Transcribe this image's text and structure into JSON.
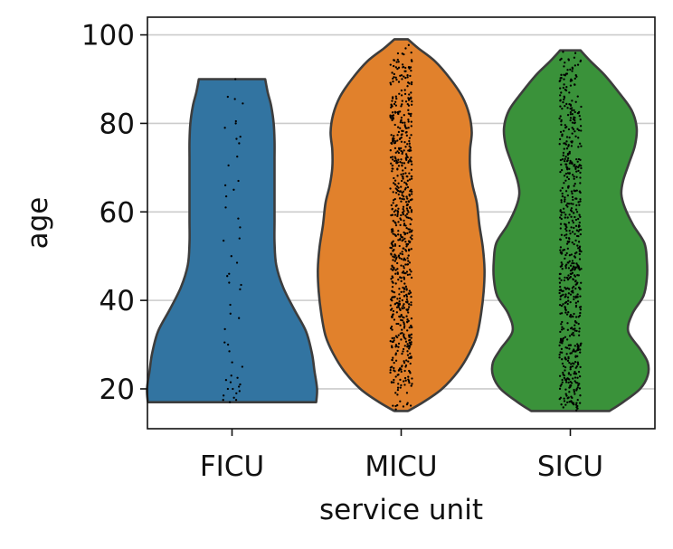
{
  "chart_data": {
    "type": "violin",
    "title": "",
    "xlabel": "service unit",
    "ylabel": "age",
    "ylim": [
      11,
      104
    ],
    "yticks": [
      20,
      40,
      60,
      80,
      100
    ],
    "grid": "y",
    "legend": "none",
    "categories": [
      "FICU",
      "MICU",
      "SICU"
    ],
    "colors": [
      "#3274a1",
      "#e1812c",
      "#3a923a"
    ],
    "series": [
      {
        "category": "FICU",
        "min": 17,
        "max": 90,
        "density_profile": [
          [
            17,
            0.99
          ],
          [
            20,
            1.0
          ],
          [
            24,
            0.97
          ],
          [
            28,
            0.94
          ],
          [
            33,
            0.87
          ],
          [
            38,
            0.73
          ],
          [
            43,
            0.6
          ],
          [
            48,
            0.52
          ],
          [
            53,
            0.5
          ],
          [
            58,
            0.5
          ],
          [
            63,
            0.5
          ],
          [
            68,
            0.5
          ],
          [
            72,
            0.5
          ],
          [
            76,
            0.5
          ],
          [
            80,
            0.49
          ],
          [
            84,
            0.46
          ],
          [
            87,
            0.42
          ],
          [
            90,
            0.39
          ]
        ],
        "points": [
          90,
          86,
          85.5,
          84.5,
          80.5,
          80,
          79,
          77,
          76.5,
          75.5,
          72.5,
          70.5,
          67,
          66,
          65,
          63.5,
          61,
          58.5,
          56.5,
          54,
          53.5,
          50,
          48.5,
          46,
          45.5,
          44,
          43.5,
          42.5,
          39,
          37,
          36,
          33.5,
          30.5,
          30,
          28.5,
          26,
          25,
          23,
          22.5,
          22,
          21.5,
          21,
          20.5,
          20,
          20,
          19.5,
          19,
          18.5,
          18,
          17.5,
          17.5,
          17
        ]
      },
      {
        "category": "MICU",
        "min": 15,
        "max": 99,
        "density_profile": [
          [
            15,
            0.08
          ],
          [
            17,
            0.26
          ],
          [
            20,
            0.48
          ],
          [
            24,
            0.67
          ],
          [
            28,
            0.8
          ],
          [
            32,
            0.89
          ],
          [
            37,
            0.94
          ],
          [
            42,
            0.97
          ],
          [
            47,
            0.98
          ],
          [
            52,
            0.96
          ],
          [
            57,
            0.92
          ],
          [
            62,
            0.89
          ],
          [
            66,
            0.84
          ],
          [
            70,
            0.81
          ],
          [
            74,
            0.81
          ],
          [
            78,
            0.83
          ],
          [
            82,
            0.8
          ],
          [
            86,
            0.72
          ],
          [
            90,
            0.58
          ],
          [
            94,
            0.4
          ],
          [
            97,
            0.2
          ],
          [
            99,
            0.08
          ]
        ],
        "point_count": 700,
        "points_range": [
          15,
          99
        ]
      },
      {
        "category": "SICU",
        "min": 15,
        "max": 96.5,
        "density_profile": [
          [
            15,
            0.46
          ],
          [
            17,
            0.62
          ],
          [
            20,
            0.82
          ],
          [
            23,
            0.91
          ],
          [
            26,
            0.91
          ],
          [
            29,
            0.82
          ],
          [
            33,
            0.68
          ],
          [
            37,
            0.73
          ],
          [
            41,
            0.86
          ],
          [
            45,
            0.9
          ],
          [
            49,
            0.9
          ],
          [
            53,
            0.87
          ],
          [
            57,
            0.74
          ],
          [
            61,
            0.64
          ],
          [
            64,
            0.6
          ],
          [
            67,
            0.62
          ],
          [
            71,
            0.69
          ],
          [
            75,
            0.76
          ],
          [
            79,
            0.78
          ],
          [
            83,
            0.72
          ],
          [
            87,
            0.57
          ],
          [
            91,
            0.4
          ],
          [
            94,
            0.24
          ],
          [
            96.5,
            0.12
          ]
        ],
        "point_count": 650,
        "points_range": [
          15,
          96.5
        ]
      }
    ]
  }
}
